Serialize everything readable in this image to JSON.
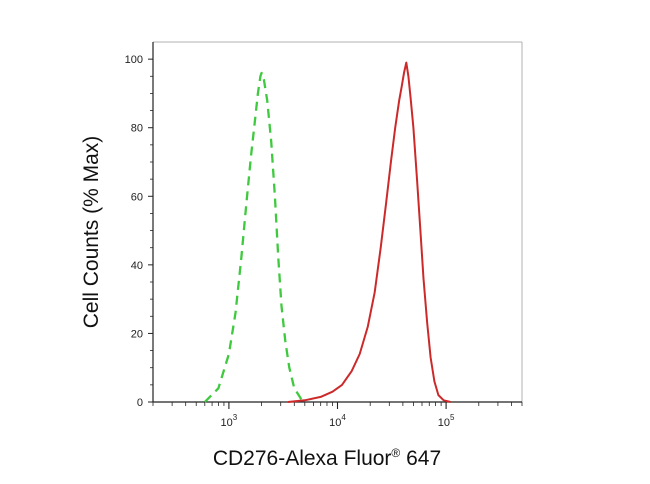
{
  "chart_data": {
    "type": "line",
    "xlabel": "CD276-Alexa Fluor",
    "xlabel_sup": "®",
    "xlabel_suffix": " 647",
    "ylabel": "Cell Counts (% Max)",
    "x_scale": "log",
    "xlim": [
      200,
      500000
    ],
    "ylim": [
      0,
      105
    ],
    "y_ticks": [
      0,
      20,
      40,
      60,
      80,
      100
    ],
    "x_ticks": [
      {
        "base": "10",
        "exp": "3",
        "value": 1000
      },
      {
        "base": "10",
        "exp": "4",
        "value": 10000
      },
      {
        "base": "10",
        "exp": "5",
        "value": 100000
      }
    ],
    "grid": false,
    "legend": "none",
    "series": [
      {
        "color": "#3fc93f",
        "dash": "dashed",
        "points": [
          [
            600,
            0
          ],
          [
            800,
            4
          ],
          [
            1000,
            14
          ],
          [
            1150,
            26
          ],
          [
            1300,
            42
          ],
          [
            1450,
            58
          ],
          [
            1600,
            72
          ],
          [
            1750,
            83
          ],
          [
            1850,
            90
          ],
          [
            1950,
            95
          ],
          [
            2000,
            96
          ],
          [
            2100,
            94
          ],
          [
            2250,
            88
          ],
          [
            2450,
            76
          ],
          [
            2650,
            60
          ],
          [
            2850,
            42
          ],
          [
            3050,
            28
          ],
          [
            3300,
            18
          ],
          [
            3600,
            10
          ],
          [
            4000,
            4
          ],
          [
            4600,
            1
          ],
          [
            5200,
            0
          ]
        ]
      },
      {
        "color": "#cc2a2a",
        "dash": "solid",
        "points": [
          [
            3500,
            0
          ],
          [
            5000,
            0.5
          ],
          [
            7000,
            1.5
          ],
          [
            9000,
            3
          ],
          [
            11000,
            5
          ],
          [
            13500,
            9
          ],
          [
            16000,
            14
          ],
          [
            19000,
            22
          ],
          [
            22000,
            32
          ],
          [
            25000,
            45
          ],
          [
            28000,
            58
          ],
          [
            31000,
            70
          ],
          [
            34000,
            80
          ],
          [
            37000,
            88
          ],
          [
            39000,
            92
          ],
          [
            41000,
            96
          ],
          [
            43000,
            99
          ],
          [
            45000,
            95
          ],
          [
            47000,
            89
          ],
          [
            50000,
            80
          ],
          [
            54000,
            65
          ],
          [
            58000,
            50
          ],
          [
            62000,
            36
          ],
          [
            67000,
            23
          ],
          [
            72000,
            13
          ],
          [
            78000,
            6
          ],
          [
            85000,
            2
          ],
          [
            95000,
            0.5
          ],
          [
            110000,
            0
          ]
        ]
      }
    ]
  }
}
